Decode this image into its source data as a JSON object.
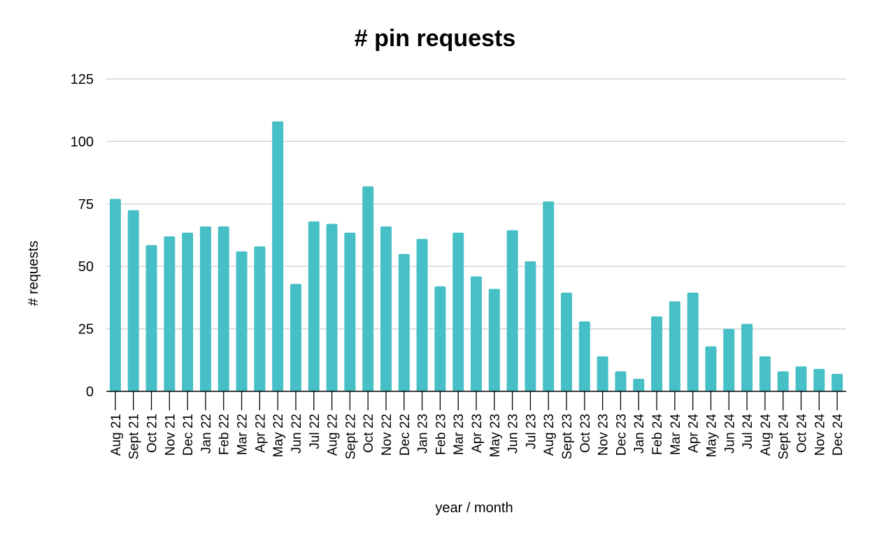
{
  "chart_data": {
    "type": "bar",
    "title": "# pin requests",
    "xlabel": "year / month",
    "ylabel": "# requests",
    "ylim": [
      0,
      125
    ],
    "yticks": [
      0,
      25,
      50,
      75,
      100,
      125
    ],
    "grid": true,
    "legend": "none",
    "bar_color": "#47BFC6",
    "categories": [
      "Aug 21",
      "Sept 21",
      "Oct 21",
      "Nov 21",
      "Dec 21",
      "Jan 22",
      "Feb 22",
      "Mar 22",
      "Apr 22",
      "May 22",
      "Jun 22",
      "Jul 22",
      "Aug 22",
      "Sept 22",
      "Oct 22",
      "Nov 22",
      "Dec 22",
      "Jan 23",
      "Feb 23",
      "Mar 23",
      "Apr 23",
      "May 23",
      "Jun 23",
      "Jul 23",
      "Aug 23",
      "Sept 23",
      "Oct 23",
      "Nov 23",
      "Dec 23",
      "Jan 24",
      "Feb 24",
      "Mar 24",
      "Apr 24",
      "May 24",
      "Jun 24",
      "Jul 24",
      "Aug 24",
      "Sept 24",
      "Oct 24",
      "Nov 24",
      "Dec 24"
    ],
    "values": [
      77,
      72.5,
      58.5,
      62,
      63.5,
      66,
      66,
      56,
      58,
      108,
      43,
      68,
      67,
      63.5,
      82,
      66,
      55,
      61,
      42,
      63.5,
      46,
      41,
      64.5,
      52,
      76,
      39.5,
      28,
      14,
      8,
      5,
      30,
      36,
      39.5,
      18,
      25,
      27,
      14,
      8,
      10,
      9,
      7
    ]
  }
}
